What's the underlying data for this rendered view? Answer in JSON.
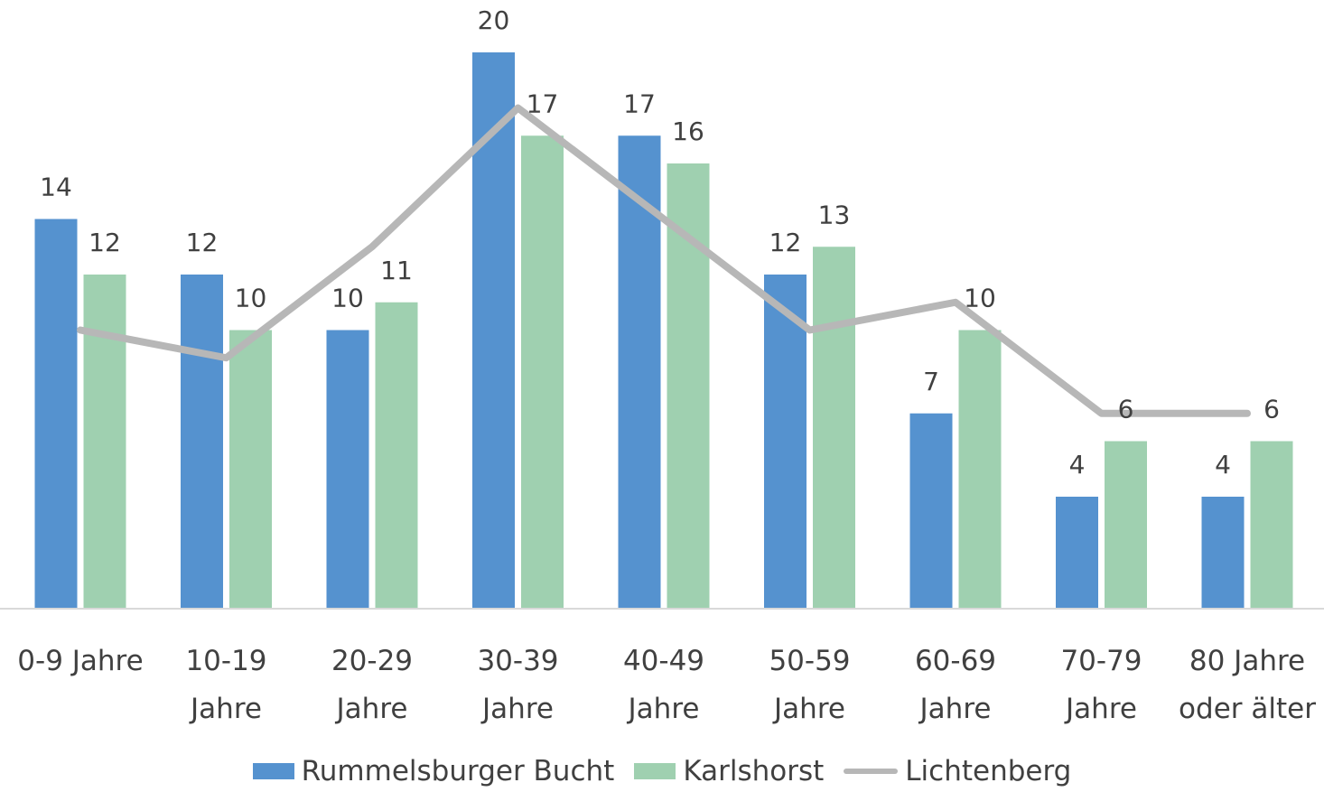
{
  "colors": {
    "s1": "#5592cf",
    "s2": "#9fd0b0",
    "s3": "#b7b7b7",
    "axis": "#d9d9d9"
  },
  "chart_data": {
    "type": "bar",
    "categories": [
      [
        "0-9 Jahre"
      ],
      [
        "10-19",
        "Jahre"
      ],
      [
        "20-29",
        "Jahre"
      ],
      [
        "30-39",
        "Jahre"
      ],
      [
        "40-49",
        "Jahre"
      ],
      [
        "50-59",
        "Jahre"
      ],
      [
        "60-69",
        "Jahre"
      ],
      [
        "70-79",
        "Jahre"
      ],
      [
        "80 Jahre",
        "oder älter"
      ]
    ],
    "series": [
      {
        "name": "Rummelsburger Bucht",
        "type": "bar",
        "values": [
          14,
          12,
          10,
          20,
          17,
          12,
          7,
          4,
          4
        ],
        "labels": [
          "14",
          "12",
          "10",
          "20",
          "17",
          "12",
          "7",
          "4",
          "4"
        ]
      },
      {
        "name": "Karlshorst",
        "type": "bar",
        "values": [
          12,
          10,
          11,
          17,
          16,
          13,
          10,
          6,
          6
        ],
        "labels": [
          "12",
          "10",
          "11",
          "17",
          "16",
          "13",
          "10",
          "6",
          "6"
        ]
      },
      {
        "name": "Lichtenberg",
        "type": "line",
        "values": [
          10,
          9,
          13,
          18,
          14,
          10,
          11,
          7,
          7
        ]
      }
    ],
    "ylim": [
      0,
      20.5
    ],
    "grid": false,
    "legend_position": "bottom"
  }
}
